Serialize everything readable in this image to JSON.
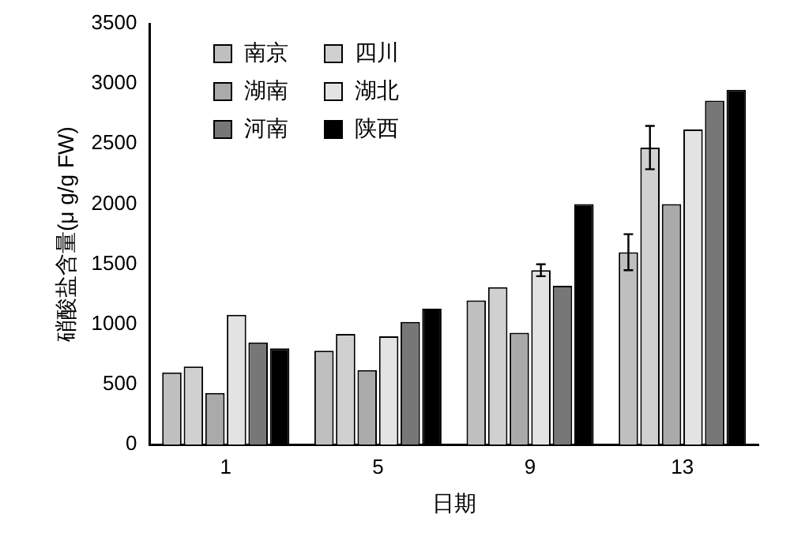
{
  "chart_data": {
    "type": "bar",
    "xlabel": "日期",
    "ylabel": "硝酸盐含量(μ g/g FW)",
    "categories": [
      "1",
      "5",
      "9",
      "13"
    ],
    "series": [
      {
        "name": "南京",
        "color": "#bfbfbf",
        "values": [
          600,
          780,
          1200,
          1600
        ],
        "errors": [
          null,
          null,
          null,
          150
        ]
      },
      {
        "name": "四川",
        "color": "#d0d0d0",
        "values": [
          650,
          920,
          1310,
          2470
        ],
        "errors": [
          null,
          null,
          null,
          180
        ]
      },
      {
        "name": "湖南",
        "color": "#aaaaaa",
        "values": [
          430,
          620,
          930,
          2000
        ]
      },
      {
        "name": "湖北",
        "color": "#e3e3e3",
        "values": [
          1080,
          900,
          1450,
          2620
        ],
        "errors": [
          null,
          null,
          50,
          null
        ]
      },
      {
        "name": "河南",
        "color": "#777777",
        "values": [
          850,
          1020,
          1320,
          2860
        ]
      },
      {
        "name": "陕西",
        "color": "#000000",
        "values": [
          800,
          1130,
          2000,
          2950
        ]
      }
    ],
    "ylim": [
      0,
      3500
    ],
    "yticks": [
      0,
      500,
      1000,
      1500,
      2000,
      2500,
      3000,
      3500
    ],
    "grid": false,
    "legend": "top left"
  }
}
